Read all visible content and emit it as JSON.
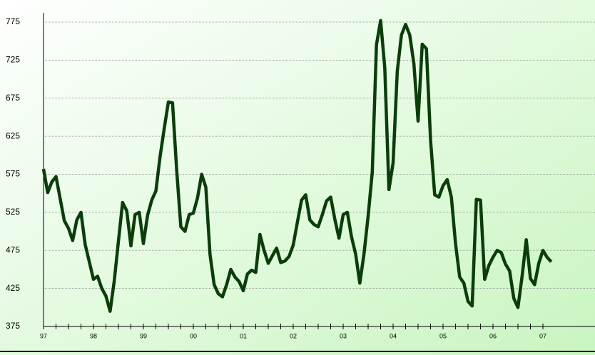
{
  "chart_data": {
    "type": "line",
    "categories": [
      "97",
      null,
      null,
      null,
      null,
      null,
      null,
      null,
      null,
      null,
      null,
      null,
      "98",
      null,
      null,
      null,
      null,
      null,
      null,
      null,
      null,
      null,
      null,
      null,
      "99",
      null,
      null,
      null,
      null,
      null,
      null,
      null,
      null,
      null,
      null,
      null,
      "00",
      null,
      null,
      null,
      null,
      null,
      null,
      null,
      null,
      null,
      null,
      null,
      "01",
      null,
      null,
      null,
      null,
      null,
      null,
      null,
      null,
      null,
      null,
      null,
      "02",
      null,
      null,
      null,
      null,
      null,
      null,
      null,
      null,
      null,
      null,
      null,
      "03",
      null,
      null,
      null,
      null,
      null,
      null,
      null,
      null,
      null,
      null,
      null,
      "04",
      null,
      null,
      null,
      null,
      null,
      null,
      null,
      null,
      null,
      null,
      null,
      "05",
      null,
      null,
      null,
      null,
      null,
      null,
      null,
      null,
      null,
      null,
      null,
      "06",
      null,
      null,
      null,
      null,
      null,
      null,
      null,
      null,
      null,
      null,
      null,
      "07",
      null,
      null
    ],
    "series": [
      {
        "color": "#0b3d0b",
        "values": [
          582,
          551,
          565,
          572,
          543,
          514,
          504,
          488,
          515,
          525,
          483,
          460,
          437,
          441,
          425,
          415,
          395,
          435,
          487,
          538,
          527,
          481,
          522,
          525,
          484,
          521,
          541,
          553,
          598,
          635,
          670,
          669,
          580,
          506,
          500,
          522,
          524,
          544,
          575,
          558,
          470,
          430,
          418,
          414,
          430,
          450,
          440,
          434,
          422,
          444,
          449,
          446,
          496,
          475,
          458,
          468,
          478,
          459,
          461,
          467,
          482,
          512,
          541,
          548,
          515,
          509,
          506,
          522,
          540,
          545,
          516,
          491,
          522,
          525,
          493,
          470,
          432,
          470,
          520,
          578,
          745,
          777,
          715,
          555,
          590,
          710,
          758,
          772,
          758,
          720,
          645,
          746,
          740,
          620,
          548,
          545,
          560,
          568,
          545,
          484,
          440,
          432,
          408,
          402,
          542,
          541,
          437,
          455,
          466,
          475,
          472,
          457,
          448,
          412,
          400,
          441,
          489,
          438,
          430,
          458,
          475,
          466,
          460
        ]
      }
    ],
    "ylim": [
      375,
      775
    ],
    "yticks": [
      375,
      425,
      475,
      525,
      575,
      625,
      675,
      725,
      775
    ],
    "grid": true
  }
}
